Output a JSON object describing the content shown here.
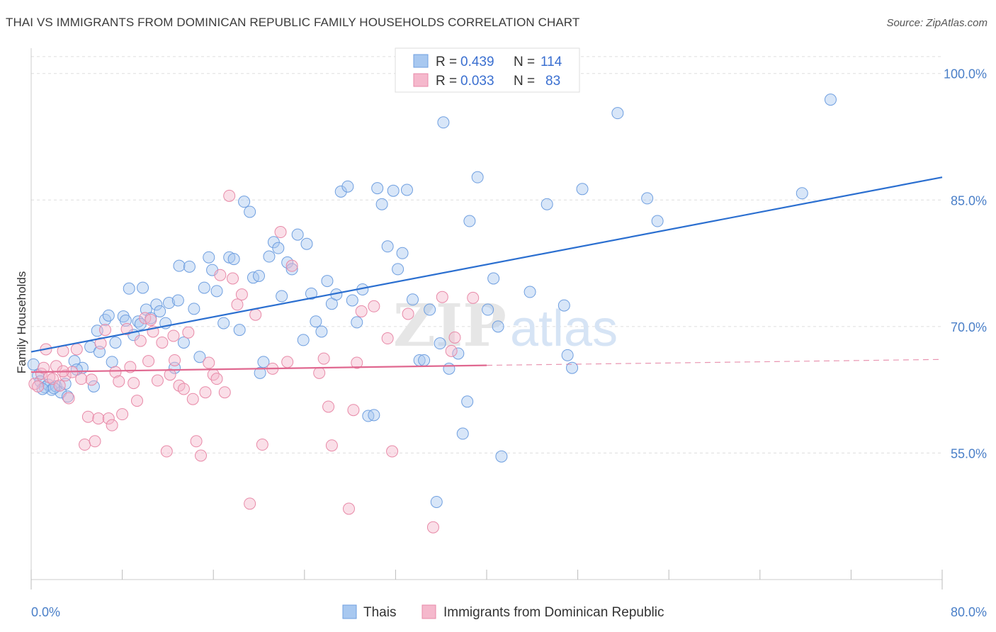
{
  "title": "THAI VS IMMIGRANTS FROM DOMINICAN REPUBLIC FAMILY HOUSEHOLDS CORRELATION CHART",
  "source": "Source: ZipAtlas.com",
  "watermark": {
    "zip": "ZIP",
    "atlas": "atlas"
  },
  "legend_top": {
    "series": [
      {
        "r_label": "R =",
        "r_value": "0.439",
        "n_label": "N =",
        "n_value": "114"
      },
      {
        "r_label": "R =",
        "r_value": "0.033",
        "n_label": "N =",
        "n_value": "83"
      }
    ]
  },
  "legend_bottom": [
    "Thais",
    "Immigrants from Dominican Republic"
  ],
  "colors": {
    "thai_fill": "#a8c8f0",
    "thai_stroke": "#6f9fe0",
    "thai_line": "#2b6fd0",
    "dom_fill": "#f5b8cc",
    "dom_stroke": "#e88aa8",
    "dom_line": "#e06890",
    "tick_blue": "#4a7fc8",
    "grid": "#dddddd"
  },
  "chart_data": {
    "type": "scatter",
    "xlabel": "",
    "ylabel": "Family Households",
    "xlim": [
      0,
      80
    ],
    "ylim": [
      40,
      103
    ],
    "x_tick_labels": [
      "0.0%",
      "80.0%"
    ],
    "y_ticks": [
      55,
      70,
      85,
      100
    ],
    "y_tick_labels": [
      "55.0%",
      "70.0%",
      "85.0%",
      "100.0%"
    ],
    "grid": true,
    "series": [
      {
        "name": "Thais",
        "R": 0.439,
        "N": 114,
        "trend": {
          "x": [
            0,
            80
          ],
          "y": [
            67.0,
            87.7
          ]
        },
        "points": [
          [
            0.2,
            65.5
          ],
          [
            0.6,
            64.2
          ],
          [
            0.8,
            63.5
          ],
          [
            1.2,
            62.8
          ],
          [
            1.5,
            63.1
          ],
          [
            1.8,
            62.5
          ],
          [
            2.2,
            62.9
          ],
          [
            2.6,
            62.2
          ],
          [
            3.2,
            61.7
          ],
          [
            3.8,
            65.9
          ],
          [
            4.5,
            65.1
          ],
          [
            5.2,
            67.6
          ],
          [
            5.5,
            62.9
          ],
          [
            5.8,
            69.5
          ],
          [
            6.5,
            70.8
          ],
          [
            6.8,
            71.3
          ],
          [
            7.1,
            65.8
          ],
          [
            7.4,
            68.1
          ],
          [
            8.1,
            71.2
          ],
          [
            8.3,
            70.7
          ],
          [
            8.6,
            74.5
          ],
          [
            9.0,
            69.0
          ],
          [
            9.4,
            70.6
          ],
          [
            9.8,
            74.6
          ],
          [
            10.1,
            72.0
          ],
          [
            10.5,
            71.0
          ],
          [
            11.0,
            72.6
          ],
          [
            11.3,
            71.8
          ],
          [
            11.8,
            70.4
          ],
          [
            12.1,
            72.8
          ],
          [
            12.6,
            65.1
          ],
          [
            13.0,
            77.2
          ],
          [
            13.4,
            68.1
          ],
          [
            13.9,
            77.1
          ],
          [
            14.3,
            72.1
          ],
          [
            14.8,
            66.4
          ],
          [
            15.2,
            74.6
          ],
          [
            15.6,
            78.2
          ],
          [
            15.9,
            76.7
          ],
          [
            16.3,
            74.2
          ],
          [
            16.9,
            70.4
          ],
          [
            17.4,
            78.2
          ],
          [
            17.8,
            78.0
          ],
          [
            18.3,
            69.6
          ],
          [
            18.7,
            84.8
          ],
          [
            19.2,
            83.6
          ],
          [
            19.5,
            75.8
          ],
          [
            20.0,
            76.0
          ],
          [
            20.1,
            64.5
          ],
          [
            20.4,
            65.8
          ],
          [
            20.9,
            78.3
          ],
          [
            21.3,
            80.0
          ],
          [
            21.7,
            79.3
          ],
          [
            22.0,
            73.6
          ],
          [
            22.5,
            77.6
          ],
          [
            22.9,
            76.8
          ],
          [
            23.4,
            80.9
          ],
          [
            23.9,
            68.4
          ],
          [
            24.2,
            79.8
          ],
          [
            24.6,
            73.9
          ],
          [
            25.0,
            70.6
          ],
          [
            25.5,
            69.4
          ],
          [
            26.0,
            75.4
          ],
          [
            26.4,
            72.7
          ],
          [
            26.8,
            73.8
          ],
          [
            27.2,
            86.0
          ],
          [
            27.8,
            86.6
          ],
          [
            28.2,
            73.1
          ],
          [
            28.6,
            70.5
          ],
          [
            29.1,
            74.4
          ],
          [
            29.6,
            59.4
          ],
          [
            30.1,
            59.5
          ],
          [
            30.4,
            86.4
          ],
          [
            30.8,
            84.5
          ],
          [
            31.3,
            79.5
          ],
          [
            31.8,
            86.1
          ],
          [
            32.2,
            76.8
          ],
          [
            32.6,
            78.7
          ],
          [
            33.0,
            86.2
          ],
          [
            33.5,
            73.2
          ],
          [
            34.1,
            66.0
          ],
          [
            34.5,
            66.0
          ],
          [
            35.0,
            72.0
          ],
          [
            35.6,
            49.2
          ],
          [
            35.9,
            68.0
          ],
          [
            36.2,
            94.2
          ],
          [
            36.7,
            65.0
          ],
          [
            37.5,
            66.8
          ],
          [
            37.9,
            57.3
          ],
          [
            38.3,
            61.1
          ],
          [
            38.5,
            82.5
          ],
          [
            39.2,
            87.7
          ],
          [
            40.1,
            72.0
          ],
          [
            40.6,
            75.7
          ],
          [
            41.0,
            70.0
          ],
          [
            41.3,
            54.6
          ],
          [
            43.8,
            74.1
          ],
          [
            45.3,
            84.5
          ],
          [
            46.8,
            72.5
          ],
          [
            47.1,
            66.6
          ],
          [
            47.5,
            65.1
          ],
          [
            48.4,
            86.3
          ],
          [
            51.5,
            95.3
          ],
          [
            54.1,
            85.2
          ],
          [
            55.0,
            82.5
          ],
          [
            67.7,
            85.8
          ],
          [
            70.2,
            96.9
          ],
          [
            1.0,
            62.6
          ],
          [
            2.0,
            62.7
          ],
          [
            3.0,
            63.2
          ],
          [
            4.0,
            64.9
          ],
          [
            6.0,
            67.0
          ],
          [
            9.6,
            70.3
          ],
          [
            12.9,
            73.1
          ]
        ]
      },
      {
        "name": "Immigrants from Dominican Republic",
        "R": 0.033,
        "N": 83,
        "trend": {
          "x": [
            0,
            40
          ],
          "y": [
            64.6,
            65.4
          ]
        },
        "trend_dashed": {
          "x": [
            40,
            80
          ],
          "y": [
            65.4,
            66.1
          ]
        },
        "points": [
          [
            0.3,
            63.2
          ],
          [
            0.6,
            62.9
          ],
          [
            0.9,
            64.4
          ],
          [
            1.1,
            65.1
          ],
          [
            1.3,
            67.3
          ],
          [
            1.6,
            64.0
          ],
          [
            1.9,
            63.8
          ],
          [
            2.2,
            65.3
          ],
          [
            2.5,
            63.0
          ],
          [
            2.8,
            67.1
          ],
          [
            3.0,
            64.2
          ],
          [
            3.3,
            61.5
          ],
          [
            3.6,
            64.6
          ],
          [
            4.0,
            67.3
          ],
          [
            4.4,
            63.8
          ],
          [
            4.7,
            56.0
          ],
          [
            5.0,
            59.3
          ],
          [
            5.3,
            63.7
          ],
          [
            5.6,
            56.4
          ],
          [
            5.9,
            59.1
          ],
          [
            6.1,
            68.0
          ],
          [
            6.5,
            69.6
          ],
          [
            6.8,
            59.1
          ],
          [
            7.1,
            58.3
          ],
          [
            7.4,
            64.6
          ],
          [
            7.7,
            63.5
          ],
          [
            8.0,
            59.6
          ],
          [
            8.4,
            69.7
          ],
          [
            8.7,
            65.2
          ],
          [
            9.0,
            63.3
          ],
          [
            9.3,
            61.2
          ],
          [
            9.6,
            68.3
          ],
          [
            10.0,
            71.0
          ],
          [
            10.3,
            65.9
          ],
          [
            10.7,
            69.4
          ],
          [
            11.1,
            63.6
          ],
          [
            11.5,
            68.1
          ],
          [
            11.9,
            55.2
          ],
          [
            12.2,
            64.3
          ],
          [
            12.6,
            66.0
          ],
          [
            13.0,
            63.0
          ],
          [
            13.4,
            62.6
          ],
          [
            13.8,
            69.3
          ],
          [
            14.2,
            61.4
          ],
          [
            14.5,
            56.4
          ],
          [
            14.9,
            54.7
          ],
          [
            15.3,
            62.2
          ],
          [
            15.6,
            65.7
          ],
          [
            16.0,
            64.3
          ],
          [
            16.3,
            63.8
          ],
          [
            16.6,
            76.1
          ],
          [
            17.0,
            62.2
          ],
          [
            17.4,
            85.5
          ],
          [
            17.7,
            75.7
          ],
          [
            18.1,
            72.6
          ],
          [
            18.5,
            73.8
          ],
          [
            19.2,
            49.0
          ],
          [
            19.7,
            71.4
          ],
          [
            20.3,
            56.0
          ],
          [
            21.2,
            65.0
          ],
          [
            21.9,
            81.2
          ],
          [
            22.5,
            65.8
          ],
          [
            22.9,
            77.2
          ],
          [
            25.3,
            64.5
          ],
          [
            25.7,
            66.2
          ],
          [
            26.1,
            60.5
          ],
          [
            26.4,
            55.9
          ],
          [
            27.9,
            48.4
          ],
          [
            28.3,
            60.1
          ],
          [
            28.6,
            65.7
          ],
          [
            29.0,
            71.8
          ],
          [
            30.1,
            72.4
          ],
          [
            31.3,
            68.6
          ],
          [
            31.7,
            55.2
          ],
          [
            33.1,
            71.5
          ],
          [
            35.3,
            46.2
          ],
          [
            36.1,
            73.5
          ],
          [
            36.9,
            67.1
          ],
          [
            37.2,
            68.7
          ],
          [
            38.8,
            73.4
          ],
          [
            2.8,
            64.7
          ],
          [
            10.5,
            70.8
          ],
          [
            12.5,
            68.9
          ]
        ]
      }
    ]
  }
}
